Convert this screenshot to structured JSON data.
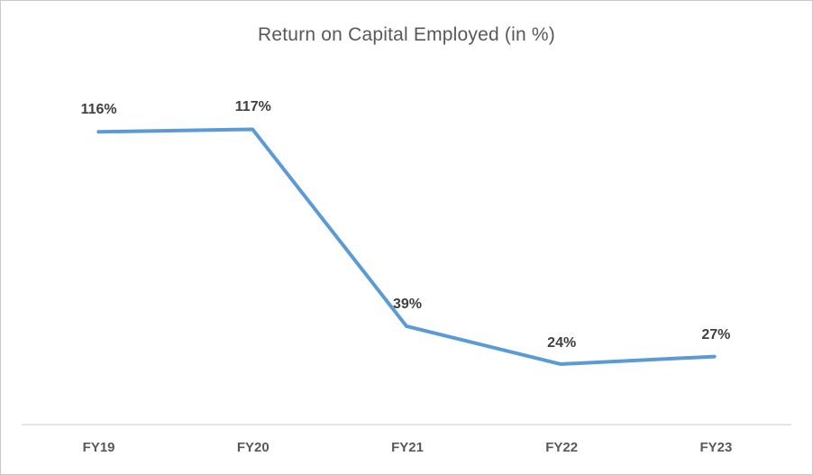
{
  "chart_data": {
    "type": "line",
    "title": "Return on Capital Employed (in %)",
    "categories": [
      "FY19",
      "FY20",
      "FY21",
      "FY22",
      "FY23"
    ],
    "values": [
      116,
      117,
      39,
      24,
      27
    ],
    "labels": [
      "116%",
      "117%",
      "39%",
      "24%",
      "27%"
    ],
    "xlabel": "",
    "ylabel": "",
    "ylim": [
      0,
      140
    ],
    "grid": false,
    "legend_position": "none",
    "y_axis_visible": false,
    "data_labels_position": "above",
    "colors": {
      "line": "#5B9BD5",
      "data_label": "#404040",
      "tick_label": "#595959",
      "title": "#595959",
      "axis_line": "#D9D9D9",
      "background": "#FFFFFF",
      "border": "#C9C9C9"
    }
  }
}
